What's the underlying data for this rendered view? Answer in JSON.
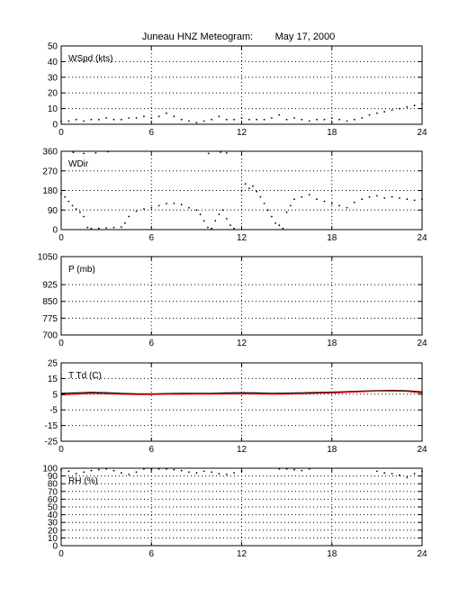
{
  "figure": {
    "title": "Juneau HNZ Meteogram:        May 17, 2000"
  },
  "chart_data": [
    {
      "id": "wspd",
      "type": "scatter",
      "label": "WSpd (kts)",
      "xlim": [
        0,
        24
      ],
      "ylim": [
        0,
        50
      ],
      "xticks": [
        0,
        6,
        12,
        18,
        24
      ],
      "yticks": [
        0,
        10,
        20,
        30,
        40,
        50
      ],
      "grid": true,
      "series": [
        {
          "color": "#000000",
          "x": [
            0,
            0.5,
            1,
            1.5,
            2,
            2.5,
            3,
            3.5,
            4,
            4.5,
            5,
            5.5,
            6,
            6.5,
            7,
            7.5,
            8,
            8.5,
            9,
            9.5,
            10,
            10.5,
            11,
            11.5,
            12,
            12.5,
            13,
            13.5,
            14,
            14.5,
            15,
            15.5,
            16,
            16.5,
            17,
            17.5,
            18,
            18.5,
            19,
            19.5,
            20,
            20.5,
            21,
            21.5,
            22,
            22.5,
            23,
            23.5,
            24
          ],
          "y": [
            2,
            2,
            3,
            2,
            3,
            3,
            4,
            3,
            3,
            4,
            4,
            5,
            4,
            5,
            7,
            5,
            3,
            2,
            1,
            2,
            3,
            5,
            3,
            3,
            4,
            3,
            3,
            3,
            4,
            6,
            3,
            4,
            3,
            2,
            3,
            3,
            4,
            3,
            2,
            3,
            4,
            6,
            7,
            8,
            9,
            10,
            11,
            12,
            13
          ]
        }
      ]
    },
    {
      "id": "wdir",
      "type": "scatter",
      "label": "WDir",
      "xlim": [
        0,
        24
      ],
      "ylim": [
        0,
        360
      ],
      "xticks": [
        0,
        6,
        12,
        18,
        24
      ],
      "yticks": [
        0,
        90,
        180,
        270,
        360
      ],
      "grid": true,
      "series": [
        {
          "color": "#000000",
          "x": [
            0,
            0.25,
            0.5,
            0.75,
            1,
            1.25,
            1.5,
            1.75,
            2,
            2.5,
            3,
            3.5,
            4,
            4.25,
            4.5,
            5,
            5.5,
            6,
            6.5,
            7,
            7.5,
            8,
            8.5,
            9,
            9.25,
            9.5,
            9.75,
            10,
            10.25,
            10.5,
            10.75,
            11,
            11.25,
            11.5,
            12,
            12.25,
            12.5,
            12.75,
            13,
            13.25,
            13.5,
            13.75,
            14,
            14.25,
            14.5,
            14.75,
            15,
            15.25,
            15.5,
            16,
            16.5,
            17,
            17.5,
            18,
            18.5,
            19,
            19.5,
            20,
            20.5,
            21,
            21.5,
            22,
            22.5,
            23,
            23.5,
            24
          ],
          "y": [
            165,
            150,
            130,
            110,
            95,
            80,
            60,
            10,
            5,
            5,
            8,
            10,
            12,
            30,
            60,
            85,
            95,
            100,
            110,
            120,
            120,
            115,
            100,
            90,
            70,
            40,
            10,
            5,
            40,
            70,
            90,
            50,
            20,
            5,
            180,
            210,
            190,
            200,
            175,
            150,
            120,
            90,
            60,
            30,
            20,
            5,
            80,
            110,
            140,
            150,
            160,
            140,
            130,
            120,
            110,
            100,
            125,
            140,
            150,
            155,
            145,
            150,
            145,
            140,
            135,
            140
          ]
        },
        {
          "color": "#000000",
          "x": [
            0.8,
            1.5,
            2.3,
            3.1,
            9.8,
            10.6,
            11.0
          ],
          "y": [
            355,
            350,
            352,
            358,
            350,
            356,
            352
          ]
        }
      ]
    },
    {
      "id": "pres",
      "type": "line",
      "label": "P (mb)",
      "xlim": [
        0,
        24
      ],
      "ylim": [
        700,
        1050
      ],
      "xticks": [
        0,
        6,
        12,
        18,
        24
      ],
      "yticks": [
        700,
        775,
        850,
        925,
        1050
      ],
      "grid": true,
      "series": []
    },
    {
      "id": "ttd",
      "type": "line",
      "label": "T Td (C)",
      "xlim": [
        0,
        24
      ],
      "ylim": [
        -25,
        25
      ],
      "xticks": [
        0,
        6,
        12,
        18,
        24
      ],
      "yticks": [
        -25,
        -15,
        -5,
        5,
        15,
        25
      ],
      "grid": true,
      "series": [
        {
          "color": "#000000",
          "x": [
            0,
            1,
            2,
            3,
            4,
            5,
            6,
            7,
            8,
            9,
            10,
            11,
            12,
            13,
            14,
            15,
            16,
            17,
            18,
            19,
            20,
            21,
            22,
            23,
            24
          ],
          "y": [
            5.5,
            5.8,
            6.2,
            6,
            5.5,
            5.3,
            5.2,
            5.4,
            5.5,
            5.6,
            5.6,
            5.8,
            6,
            5.8,
            5.6,
            5.7,
            5.9,
            6.1,
            6.3,
            6.6,
            7,
            7.3,
            7.4,
            7.2,
            6.5
          ]
        },
        {
          "color": "#ff0000",
          "x": [
            0,
            1,
            2,
            3,
            4,
            5,
            6,
            7,
            8,
            9,
            10,
            11,
            12,
            13,
            14,
            15,
            16,
            17,
            18,
            19,
            20,
            21,
            22,
            23,
            24
          ],
          "y": [
            4.5,
            5,
            5.5,
            5.3,
            5,
            4.8,
            4.8,
            5,
            5,
            5.1,
            5.1,
            5.2,
            5.3,
            5.2,
            5,
            5.1,
            5.3,
            5.6,
            5.8,
            6.2,
            6.6,
            7,
            7,
            6.8,
            5.8
          ]
        }
      ]
    },
    {
      "id": "rh",
      "type": "scatter",
      "label": "RH (%)",
      "xlim": [
        0,
        24
      ],
      "ylim": [
        0,
        100
      ],
      "xticks": [
        0,
        6,
        12,
        18,
        24
      ],
      "yticks": [
        0,
        10,
        20,
        30,
        40,
        50,
        60,
        70,
        80,
        90,
        100
      ],
      "grid": true,
      "series": [
        {
          "color": "#000000",
          "x": [
            0,
            0.5,
            1,
            1.5,
            2,
            2.5,
            3,
            3.5,
            4,
            4.5,
            5,
            5.5,
            6,
            6.5,
            7,
            7.5,
            8,
            8.5,
            9,
            9.5,
            10,
            10.5,
            11,
            11.5,
            12,
            14.5,
            15,
            15.5,
            16,
            16.5,
            21,
            21.5,
            22,
            22.5,
            23,
            23.5,
            24
          ],
          "y": [
            98,
            96,
            93,
            95,
            97,
            98,
            99,
            97,
            94,
            92,
            95,
            99,
            99,
            99,
            99,
            98,
            97,
            95,
            94,
            96,
            95,
            93,
            92,
            94,
            96,
            99,
            99,
            98,
            97,
            99,
            96,
            94,
            93,
            91,
            88,
            93,
            96
          ]
        }
      ]
    }
  ]
}
